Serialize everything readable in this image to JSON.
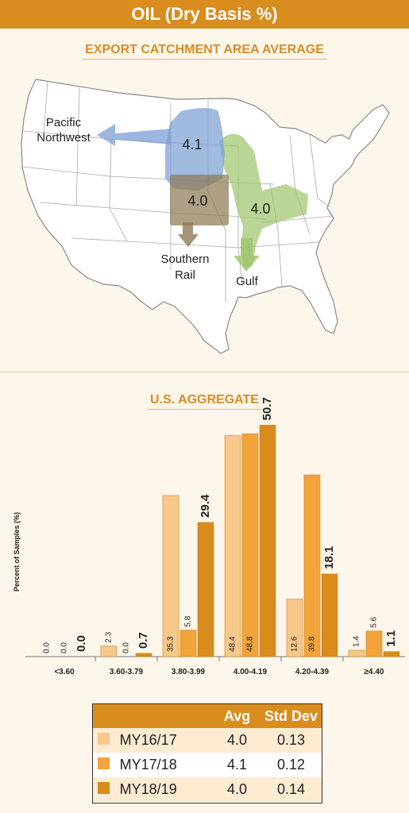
{
  "header": {
    "title": "OIL (Dry Basis %)"
  },
  "map": {
    "title": "EXPORT CATCHMENT AREA AVERAGE",
    "regions": [
      {
        "id": "pnw",
        "value": "4.1",
        "label_lines": [
          "Pacific",
          "Northwest"
        ],
        "color": "#7b9fd4"
      },
      {
        "id": "rail",
        "value": "4.0",
        "label_lines": [
          "Southern",
          "Rail"
        ],
        "color": "#8c7a55"
      },
      {
        "id": "gulf",
        "value": "4.0",
        "label_lines": [
          "Gulf"
        ],
        "color": "#9cc46a"
      }
    ]
  },
  "chart": {
    "title": "U.S. AGGREGATE",
    "ylabel": "Percent of Samples (%)"
  },
  "chart_data": {
    "type": "bar",
    "categories": [
      "<3.60",
      "3.60-3.79",
      "3.80-3.99",
      "4.00-4.19",
      "4.20-4.39",
      "≥4.40"
    ],
    "series": [
      {
        "name": "MY16/17",
        "color": "#f6c88a",
        "values": [
          0.0,
          2.3,
          35.3,
          48.4,
          12.6,
          1.4
        ]
      },
      {
        "name": "MY17/18",
        "color": "#f2a43a",
        "values": [
          0.0,
          0.0,
          5.8,
          48.8,
          39.8,
          5.6
        ]
      },
      {
        "name": "MY18/19",
        "color": "#d98b1c",
        "values": [
          0.0,
          0.7,
          29.4,
          50.7,
          18.1,
          1.1
        ]
      }
    ],
    "ylabel": "Percent of Samples (%)",
    "ylim": [
      0,
      55
    ],
    "grid": false
  },
  "legend": {
    "headers": {
      "avg": "Avg",
      "std": "Std Dev"
    },
    "rows": [
      {
        "name": "MY16/17",
        "avg": "4.0",
        "std": "0.13",
        "color": "#f6c88a"
      },
      {
        "name": "MY17/18",
        "avg": "4.1",
        "std": "0.12",
        "color": "#f2a43a"
      },
      {
        "name": "MY18/19",
        "avg": "4.0",
        "std": "0.14",
        "color": "#d98b1c"
      }
    ]
  }
}
